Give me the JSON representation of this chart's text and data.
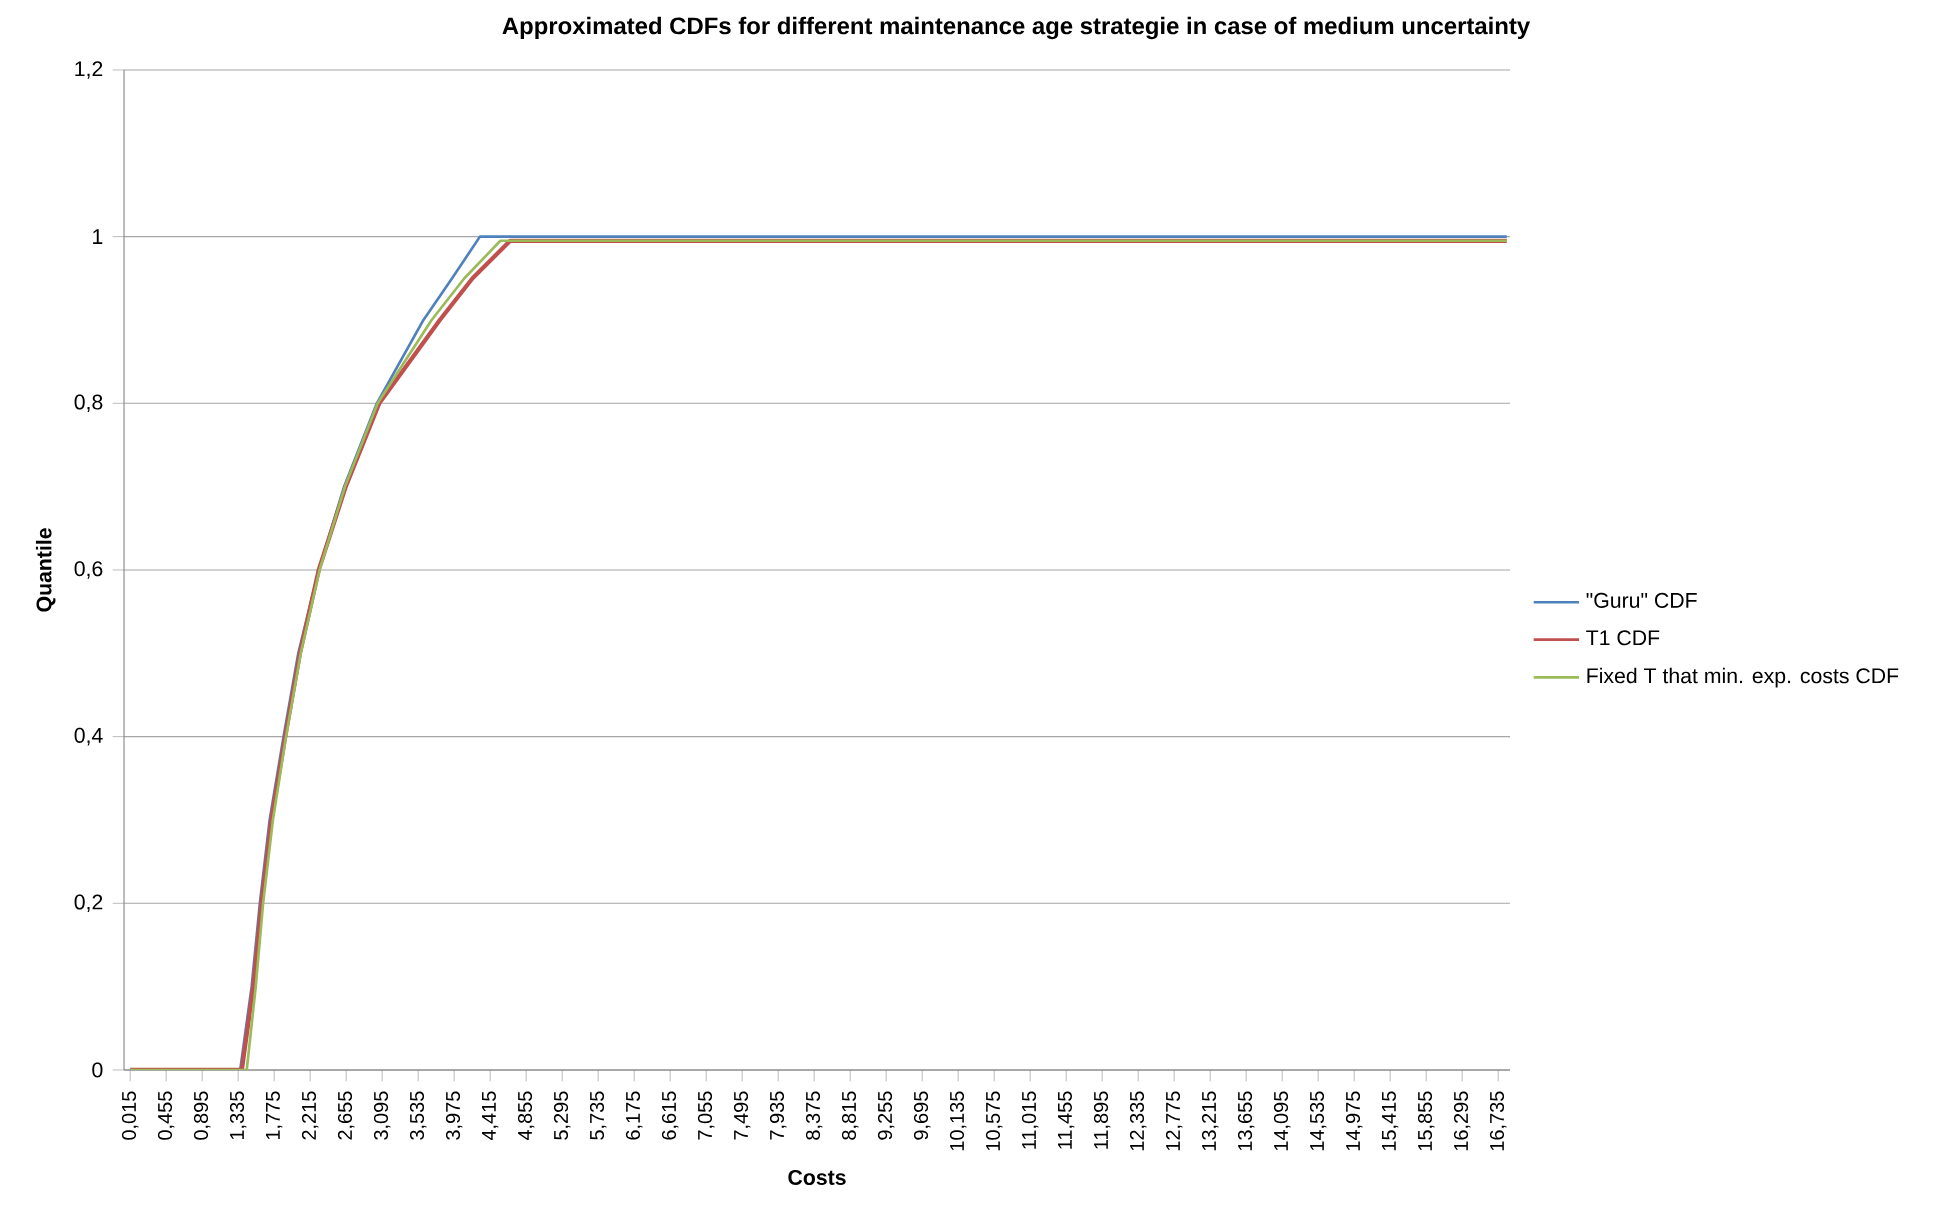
{
  "chart_data": {
    "type": "line",
    "title": "Approximated CDFs for different maintenance age strategie in case of medium uncertainty",
    "xlabel": "Costs",
    "ylabel": "Quantile",
    "xlim": [
      -0.06,
      16.88
    ],
    "xticks": [
      {
        "value": 0.015,
        "label": "0,015"
      },
      {
        "value": 0.455,
        "label": "0,455"
      },
      {
        "value": 0.895,
        "label": "0,895"
      },
      {
        "value": 1.335,
        "label": "1,335"
      },
      {
        "value": 1.775,
        "label": "1,775"
      },
      {
        "value": 2.215,
        "label": "2,215"
      },
      {
        "value": 2.655,
        "label": "2,655"
      },
      {
        "value": 3.095,
        "label": "3,095"
      },
      {
        "value": 3.535,
        "label": "3,535"
      },
      {
        "value": 3.975,
        "label": "3,975"
      },
      {
        "value": 4.415,
        "label": "4,415"
      },
      {
        "value": 4.855,
        "label": "4,855"
      },
      {
        "value": 5.295,
        "label": "5,295"
      },
      {
        "value": 5.735,
        "label": "5,735"
      },
      {
        "value": 6.175,
        "label": "6,175"
      },
      {
        "value": 6.615,
        "label": "6,615"
      },
      {
        "value": 7.055,
        "label": "7,055"
      },
      {
        "value": 7.495,
        "label": "7,495"
      },
      {
        "value": 7.935,
        "label": "7,935"
      },
      {
        "value": 8.375,
        "label": "8,375"
      },
      {
        "value": 8.815,
        "label": "8,815"
      },
      {
        "value": 9.255,
        "label": "9,255"
      },
      {
        "value": 9.695,
        "label": "9,695"
      },
      {
        "value": 10.135,
        "label": "10,135"
      },
      {
        "value": 10.575,
        "label": "10,575"
      },
      {
        "value": 11.015,
        "label": "11,015"
      },
      {
        "value": 11.455,
        "label": "11,455"
      },
      {
        "value": 11.895,
        "label": "11,895"
      },
      {
        "value": 12.335,
        "label": "12,335"
      },
      {
        "value": 12.775,
        "label": "12,775"
      },
      {
        "value": 13.215,
        "label": "13,215"
      },
      {
        "value": 13.655,
        "label": "13,655"
      },
      {
        "value": 14.095,
        "label": "14,095"
      },
      {
        "value": 14.535,
        "label": "14,535"
      },
      {
        "value": 14.975,
        "label": "14,975"
      },
      {
        "value": 15.415,
        "label": "15,415"
      },
      {
        "value": 15.855,
        "label": "15,855"
      },
      {
        "value": 16.295,
        "label": "16,295"
      },
      {
        "value": 16.735,
        "label": "16,735"
      }
    ],
    "ylim": [
      0,
      1.2
    ],
    "yticks": [
      0,
      {
        "value": 0.2,
        "label": "0,2"
      },
      {
        "value": 0.4,
        "label": "0,4"
      },
      {
        "value": 0.6,
        "label": "0,6"
      },
      {
        "value": 0.8,
        "label": "0,8"
      },
      1,
      {
        "value": 1.2,
        "label": "1,2"
      }
    ],
    "grid": "y",
    "legend": "right",
    "series": [
      {
        "name": "\"Guru\" CDF",
        "color": "#4f81bd",
        "x": [
          0.015,
          1.36,
          1.5,
          1.6,
          1.72,
          1.89,
          2.07,
          2.32,
          2.63,
          3.03,
          3.6,
          3.95,
          4.29,
          16.84
        ],
        "values": [
          0,
          0,
          0.1,
          0.2,
          0.3,
          0.4,
          0.5,
          0.6,
          0.7,
          0.8,
          0.9,
          0.95,
          1.0,
          1.0
        ]
      },
      {
        "name": "T1 CDF",
        "color": "#c0504d",
        "x": [
          0.015,
          1.38,
          1.52,
          1.62,
          1.74,
          1.91,
          2.09,
          2.32,
          2.65,
          3.06,
          3.8,
          4.2,
          4.66,
          16.84
        ],
        "values": [
          0,
          0,
          0.1,
          0.2,
          0.3,
          0.4,
          0.5,
          0.6,
          0.7,
          0.8,
          0.9,
          0.95,
          0.995,
          0.995
        ]
      },
      {
        "name": "Fixed T that min. exp. costs CDF",
        "color": "#9bbb59",
        "x": [
          0.015,
          1.44,
          1.55,
          1.64,
          1.76,
          1.92,
          2.1,
          2.33,
          2.64,
          3.04,
          3.7,
          4.1,
          4.54,
          16.84
        ],
        "values": [
          0,
          0,
          0.1,
          0.2,
          0.3,
          0.4,
          0.5,
          0.6,
          0.7,
          0.8,
          0.9,
          0.95,
          0.995,
          0.995
        ]
      }
    ]
  }
}
